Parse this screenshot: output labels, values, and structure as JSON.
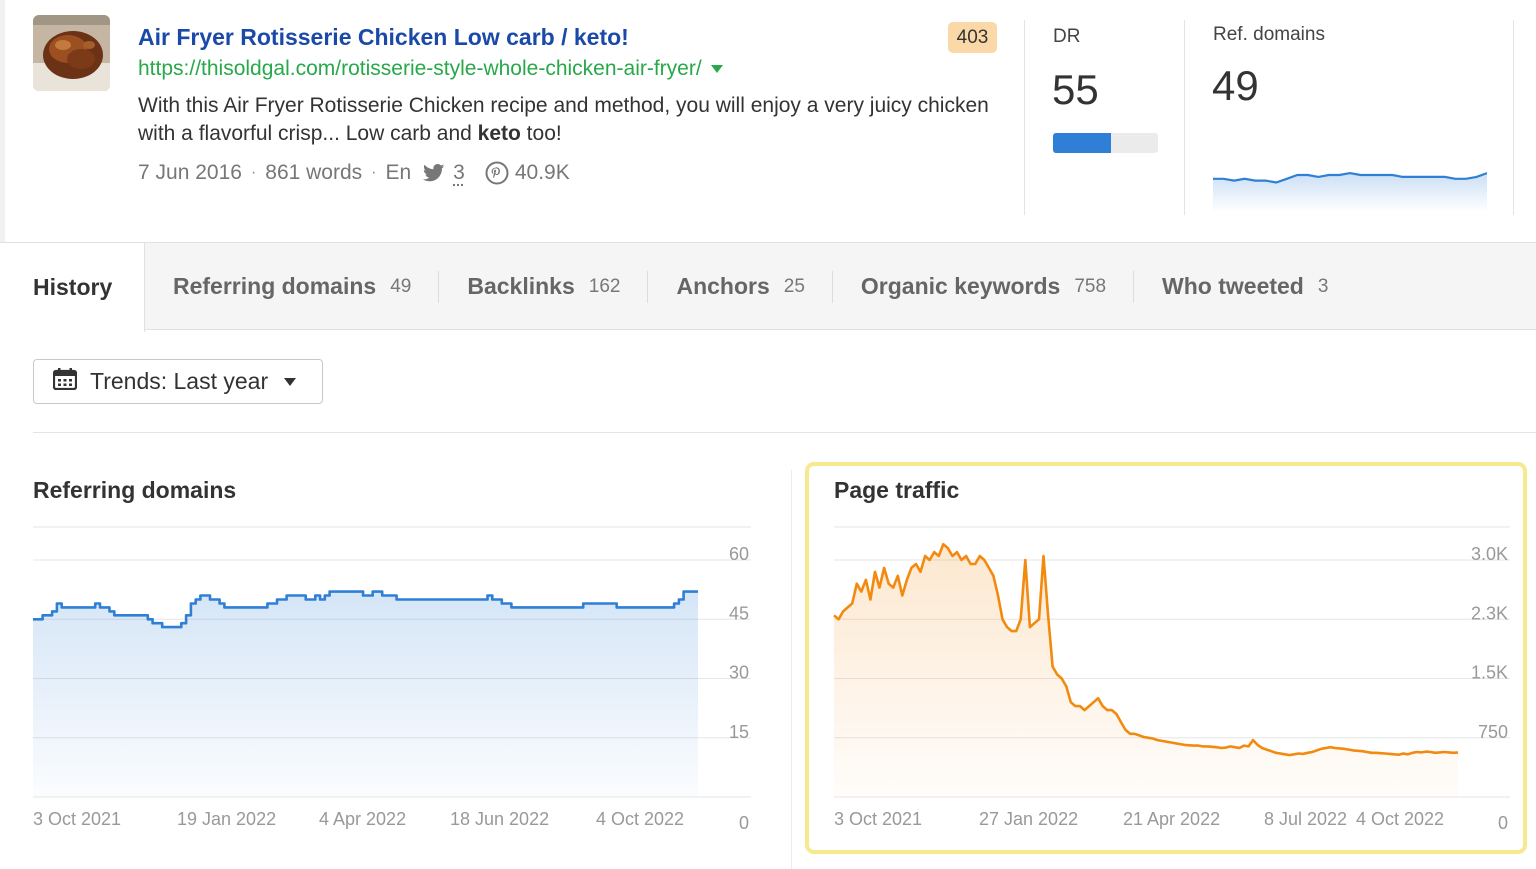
{
  "header": {
    "title": "Air Fryer Rotisserie Chicken Low carb / keto!",
    "url": "https://thisoldgal.com/rotisserie-style-whole-chicken-air-fryer/",
    "description_part1": "With this Air Fryer Rotisserie Chicken recipe and method, you will enjoy a very juicy chicken with a flavorful crisp... Low carb and ",
    "description_bold": "keto",
    "description_part2": " too!",
    "date": "7 Jun 2016",
    "words": "861 words",
    "language": "En",
    "tweets": "3",
    "pins": "40.9K",
    "status_code": "403",
    "separator": "·"
  },
  "metrics": {
    "dr_label": "DR",
    "dr_value": "55",
    "dr_fraction": 0.55,
    "ref_label": "Ref. domains",
    "ref_value": "49",
    "ref_spark": [
      47,
      47,
      46.5,
      47,
      46.5,
      46.5,
      46,
      47,
      48,
      48,
      47.5,
      48,
      48,
      48.5,
      48,
      48,
      48,
      48,
      47.5,
      47.5,
      47.5,
      47.5,
      47.5,
      47,
      47,
      47.5,
      48.5
    ]
  },
  "tabs": [
    {
      "label": "History",
      "count": ""
    },
    {
      "label": "Referring domains",
      "count": "49"
    },
    {
      "label": "Backlinks",
      "count": "162"
    },
    {
      "label": "Anchors",
      "count": "25"
    },
    {
      "label": "Organic keywords",
      "count": "758"
    },
    {
      "label": "Who tweeted",
      "count": "3"
    }
  ],
  "trends": {
    "label": "Trends: Last year"
  },
  "colors": {
    "link_title": "#1a49a8",
    "link_url": "#29a84a",
    "series_blue": "#2e7fd5",
    "series_orange": "#f28a10",
    "highlight": "#f7ea8e"
  },
  "chart_data": [
    {
      "type": "area",
      "title": "Referring domains",
      "xlabel": "",
      "ylabel": "",
      "x_ticks": [
        "3 Oct 2021",
        "19 Jan 2022",
        "4 Apr 2022",
        "18 Jun 2022",
        "4 Oct 2022"
      ],
      "y_ticks": [
        "60",
        "45",
        "30",
        "15",
        "0"
      ],
      "ylim": [
        0,
        60
      ],
      "grid": true,
      "series": [
        {
          "values": [
            45,
            45,
            46,
            46,
            47,
            49,
            48,
            48,
            48,
            48,
            48,
            48,
            48,
            49,
            48,
            48,
            47,
            46,
            46,
            46,
            46,
            46,
            46,
            46,
            45,
            44,
            44,
            43,
            43,
            43,
            43,
            44,
            46,
            49,
            50,
            51,
            51,
            50,
            50,
            49,
            48,
            48,
            48,
            48,
            48,
            48,
            48,
            48,
            48,
            49,
            49,
            50,
            50,
            51,
            51,
            51,
            51,
            50,
            50,
            51,
            50,
            51,
            52,
            52,
            52,
            52,
            52,
            52,
            52,
            51,
            51,
            52,
            52,
            51,
            51,
            51,
            50,
            50,
            50,
            50,
            50,
            50,
            50,
            50,
            50,
            50,
            50,
            50,
            50,
            50,
            50,
            50,
            50,
            50,
            50,
            51,
            50,
            50,
            49,
            49,
            48,
            48,
            48,
            48,
            48,
            48,
            48,
            48,
            48,
            48,
            48,
            48,
            48,
            48,
            48,
            49,
            49,
            49,
            49,
            49,
            49,
            49,
            48,
            48,
            48,
            48,
            48,
            48,
            48,
            48,
            48,
            48,
            48,
            48,
            49,
            50,
            52,
            52,
            52,
            52
          ]
        }
      ]
    },
    {
      "type": "area",
      "title": "Page traffic",
      "xlabel": "",
      "ylabel": "",
      "x_ticks": [
        "3 Oct 2021",
        "27 Jan 2022",
        "21 Apr 2022",
        "8 Jul 2022",
        "4 Oct 2022"
      ],
      "y_ticks": [
        "3.0K",
        "2.3K",
        "1.5K",
        "750",
        "0"
      ],
      "ylim": [
        0,
        3000
      ],
      "grid": true,
      "series": [
        {
          "values": [
            2300,
            2250,
            2350,
            2400,
            2450,
            2700,
            2600,
            2750,
            2500,
            2850,
            2650,
            2900,
            2700,
            2650,
            2800,
            2550,
            2750,
            2900,
            2950,
            2850,
            3050,
            3000,
            3100,
            3050,
            3200,
            3150,
            3050,
            3100,
            3000,
            3050,
            2950,
            2950,
            3050,
            3000,
            2900,
            2800,
            2550,
            2250,
            2150,
            2100,
            2100,
            2250,
            3000,
            2150,
            2200,
            2250,
            3050,
            2300,
            1650,
            1550,
            1500,
            1400,
            1200,
            1150,
            1150,
            1100,
            1150,
            1200,
            1250,
            1150,
            1100,
            1100,
            1050,
            950,
            850,
            800,
            800,
            780,
            760,
            750,
            740,
            720,
            710,
            700,
            690,
            680,
            670,
            660,
            655,
            650,
            650,
            640,
            640,
            635,
            630,
            620,
            625,
            640,
            630,
            620,
            650,
            640,
            720,
            660,
            620,
            600,
            580,
            560,
            550,
            540,
            530,
            540,
            550,
            545,
            560,
            570,
            590,
            610,
            620,
            630,
            620,
            615,
            610,
            600,
            590,
            585,
            580,
            570,
            560,
            560,
            555,
            550,
            545,
            540,
            535,
            550,
            540,
            560,
            570,
            565,
            575,
            570,
            560,
            565,
            570,
            565,
            560,
            565
          ]
        }
      ]
    }
  ]
}
